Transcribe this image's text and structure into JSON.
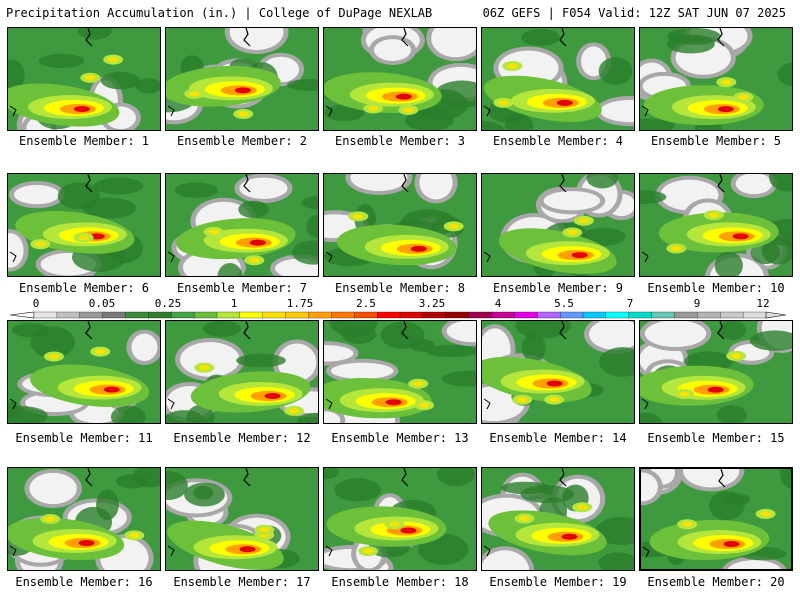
{
  "header": {
    "left": "Precipitation Accumulation (in.) | College of DuPage NEXLAB",
    "right": "06Z GEFS | F054 Valid: 12Z SAT JUN 07 2025"
  },
  "panels": [
    {
      "label": "Ensemble Member: 1",
      "selected": false
    },
    {
      "label": "Ensemble Member: 2",
      "selected": false
    },
    {
      "label": "Ensemble Member: 3",
      "selected": false
    },
    {
      "label": "Ensemble Member: 4",
      "selected": false
    },
    {
      "label": "Ensemble Member: 5",
      "selected": false
    },
    {
      "label": "Ensemble Member: 6",
      "selected": false
    },
    {
      "label": "Ensemble Member: 7",
      "selected": false
    },
    {
      "label": "Ensemble Member: 8",
      "selected": false
    },
    {
      "label": "Ensemble Member: 9",
      "selected": false
    },
    {
      "label": "Ensemble Member: 10",
      "selected": false
    },
    {
      "label": "Ensemble Member: 11",
      "selected": false
    },
    {
      "label": "Ensemble Member: 12",
      "selected": false
    },
    {
      "label": "Ensemble Member: 13",
      "selected": false
    },
    {
      "label": "Ensemble Member: 14",
      "selected": false
    },
    {
      "label": "Ensemble Member: 15",
      "selected": false
    },
    {
      "label": "Ensemble Member: 16",
      "selected": false
    },
    {
      "label": "Ensemble Member: 17",
      "selected": false
    },
    {
      "label": "Ensemble Member: 18",
      "selected": false
    },
    {
      "label": "Ensemble Member: 19",
      "selected": false
    },
    {
      "label": "Ensemble Member: 20",
      "selected": true
    }
  ],
  "colorbar": {
    "tick_labels": [
      "0",
      "0.05",
      "0.25",
      "1",
      "1.75",
      "2.5",
      "3.25",
      "4",
      "5.5",
      "7",
      "9",
      "12"
    ],
    "colors": [
      "#e6e6e6",
      "#bfbfbf",
      "#999999",
      "#7a7a7a",
      "#3c8c3c",
      "#2f7d2f",
      "#46a546",
      "#6cc03a",
      "#b4e63c",
      "#ffff00",
      "#ffe100",
      "#ffc800",
      "#ffa000",
      "#ff7800",
      "#ff5000",
      "#ff0000",
      "#dc0000",
      "#b40000",
      "#960000",
      "#a00050",
      "#c80096",
      "#e600e6",
      "#b464ff",
      "#6496ff",
      "#00c8ff",
      "#00ffff",
      "#00dcc8",
      "#64c8b4",
      "#999999",
      "#b4b4b4",
      "#c8c8c8",
      "#dcdcdc"
    ]
  }
}
